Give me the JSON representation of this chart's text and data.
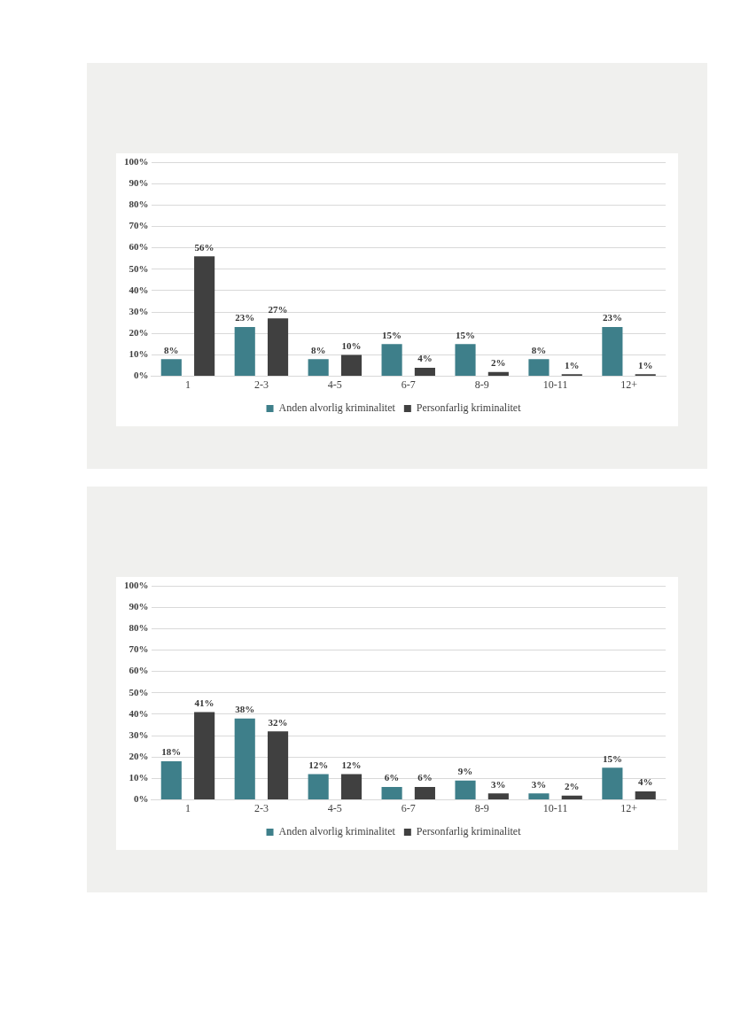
{
  "chart_data": [
    {
      "type": "bar",
      "categories": [
        "1",
        "2-3",
        "4-5",
        "6-7",
        "8-9",
        "10-11",
        "12+"
      ],
      "series": [
        {
          "name": "Anden alvorlig kriminalitet",
          "color": "#3e7f8a",
          "values": [
            8,
            23,
            8,
            15,
            15,
            8,
            23
          ],
          "value_labels": [
            "8%",
            "23%",
            "8%",
            "15%",
            "15%",
            "8%",
            "23%"
          ]
        },
        {
          "name": "Personfarlig kriminalitet",
          "color": "#404040",
          "values": [
            56,
            27,
            10,
            4,
            2,
            1,
            1
          ],
          "value_labels": [
            "56%",
            "27%",
            "10%",
            "4%",
            "2%",
            "1%",
            "1%"
          ]
        }
      ],
      "ylim": [
        0,
        100
      ],
      "yticks": [
        {
          "value": 0,
          "label": "0%"
        },
        {
          "value": 10,
          "label": "10%"
        },
        {
          "value": 20,
          "label": "20%"
        },
        {
          "value": 30,
          "label": "30%"
        },
        {
          "value": 40,
          "label": "40%"
        },
        {
          "value": 50,
          "label": "50%"
        },
        {
          "value": 60,
          "label": "60%"
        },
        {
          "value": 70,
          "label": "70%"
        },
        {
          "value": 80,
          "label": "80%"
        },
        {
          "value": 90,
          "label": "90%"
        },
        {
          "value": 100,
          "label": "100%"
        }
      ],
      "grid": "y",
      "legend": "bottom"
    },
    {
      "type": "bar",
      "categories": [
        "1",
        "2-3",
        "4-5",
        "6-7",
        "8-9",
        "10-11",
        "12+"
      ],
      "series": [
        {
          "name": "Anden alvorlig kriminalitet",
          "color": "#3e7f8a",
          "values": [
            18,
            38,
            12,
            6,
            9,
            3,
            15
          ],
          "value_labels": [
            "18%",
            "38%",
            "12%",
            "6%",
            "9%",
            "3%",
            "15%"
          ]
        },
        {
          "name": "Personfarlig kriminalitet",
          "color": "#404040",
          "values": [
            41,
            32,
            12,
            6,
            3,
            2,
            4
          ],
          "value_labels": [
            "41%",
            "32%",
            "12%",
            "6%",
            "3%",
            "2%",
            "4%"
          ]
        }
      ],
      "ylim": [
        0,
        100
      ],
      "yticks": [
        {
          "value": 0,
          "label": "0%"
        },
        {
          "value": 10,
          "label": "10%"
        },
        {
          "value": 20,
          "label": "20%"
        },
        {
          "value": 30,
          "label": "30%"
        },
        {
          "value": 40,
          "label": "40%"
        },
        {
          "value": 50,
          "label": "50%"
        },
        {
          "value": 60,
          "label": "60%"
        },
        {
          "value": 70,
          "label": "70%"
        },
        {
          "value": 80,
          "label": "80%"
        },
        {
          "value": 90,
          "label": "90%"
        },
        {
          "value": 100,
          "label": "100%"
        }
      ],
      "grid": "y",
      "legend": "bottom"
    }
  ]
}
